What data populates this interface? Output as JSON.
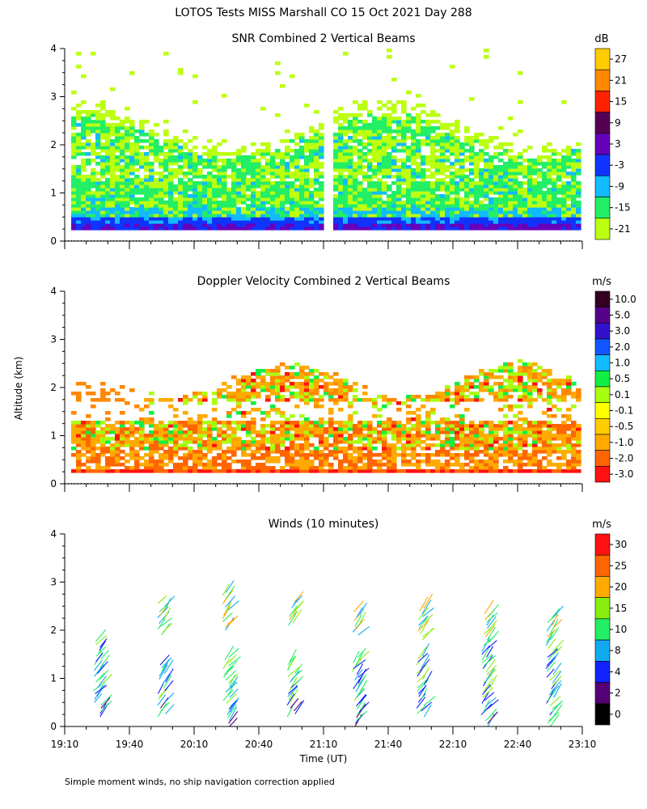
{
  "figure": {
    "title": "LOTOS Tests MISS Marshall CO  15 Oct 2021 Day 288",
    "y_axis_label": "Altitude (km)",
    "x_axis_label": "Time (UT)",
    "footnote": "Simple moment winds, no ship navigation correction applied"
  },
  "chart_data": [
    {
      "type": "heatmap",
      "title": "SNR Combined 2 Vertical Beams",
      "xlabel": "",
      "ylabel": "Altitude (km)",
      "xlim": [
        "19:10",
        "23:10"
      ],
      "ylim": [
        0,
        4
      ],
      "x_ticks": [
        "19:10",
        "19:40",
        "20:10",
        "20:40",
        "21:10",
        "21:40",
        "22:10",
        "22:40",
        "23:10"
      ],
      "y_ticks": [
        "0",
        "1",
        "2",
        "3",
        "4"
      ],
      "colorbar": {
        "unit": "dB",
        "levels": [
          "27",
          "21",
          "15",
          "9",
          "3",
          "-3",
          "-9",
          "-15",
          "-21"
        ],
        "colors": [
          "#ffcc00",
          "#ff8800",
          "#ff2200",
          "#550055",
          "#6600bb",
          "#1133ff",
          "#11bbff",
          "#22ee66",
          "#bbff11"
        ]
      },
      "layers": [
        {
          "altitude_km": [
            0.2,
            0.4
          ],
          "value": "3 to 9",
          "color": "#6600bb"
        },
        {
          "altitude_km": [
            0.4,
            0.7
          ],
          "value": "-3 to -9",
          "color": "#11bbff"
        },
        {
          "altitude_km": [
            0.7,
            1.3
          ],
          "value": "-15",
          "color": "#22ee66"
        },
        {
          "altitude_km": [
            1.3,
            2.2
          ],
          "value": "-21",
          "color": "#bbff11"
        },
        {
          "altitude_km": [
            2.0,
            2.5
          ],
          "value": "-15",
          "color": "#22ee66"
        },
        {
          "altitude_km": [
            2.5,
            4.0
          ],
          "value": "sparse -21",
          "color": "#bbff11"
        }
      ]
    },
    {
      "type": "heatmap",
      "title": "Doppler Velocity Combined 2 Vertical Beams",
      "xlabel": "",
      "ylabel": "Altitude (km)",
      "xlim": [
        "19:10",
        "23:10"
      ],
      "ylim": [
        0,
        4
      ],
      "x_ticks": [
        "19:10",
        "19:40",
        "20:10",
        "20:40",
        "21:10",
        "21:40",
        "22:10",
        "22:40",
        "23:10"
      ],
      "y_ticks": [
        "0",
        "1",
        "2",
        "3",
        "4"
      ],
      "colorbar": {
        "unit": "m/s",
        "levels": [
          "10.0",
          "5.0",
          "3.0",
          "2.0",
          "1.0",
          "0.5",
          "0.1",
          "-0.1",
          "-0.5",
          "-1.0",
          "-2.0",
          "-3.0"
        ],
        "colors": [
          "#330022",
          "#550088",
          "#3311cc",
          "#1155ff",
          "#11bbff",
          "#11ee44",
          "#aaff11",
          "#ffff00",
          "#ffcc00",
          "#ffaa00",
          "#ff6600",
          "#ff1111"
        ]
      },
      "layers": [
        {
          "altitude_km": [
            0.2,
            0.7
          ],
          "value": "-1.0 to -3.0",
          "color": "#ff6600"
        },
        {
          "altitude_km": [
            0.7,
            1.3
          ],
          "value": "-0.5 to -2.0",
          "color": "#ffaa00"
        },
        {
          "altitude_km": [
            1.7,
            2.5
          ],
          "value": "-0.5 to -2.0",
          "color": "#ff8800"
        },
        {
          "altitude_km": [
            1.7,
            2.3
          ],
          "value": "0.1 to 1.0",
          "color": "#aaff11"
        }
      ]
    },
    {
      "type": "scatter",
      "title": "Winds (10 minutes)",
      "xlabel": "Time (UT)",
      "ylabel": "Altitude (km)",
      "xlim": [
        "19:10",
        "23:10"
      ],
      "ylim": [
        0,
        4
      ],
      "x_ticks": [
        "19:10",
        "19:40",
        "20:10",
        "20:40",
        "21:10",
        "21:40",
        "22:10",
        "22:40",
        "23:10"
      ],
      "y_ticks": [
        "0",
        "1",
        "2",
        "3",
        "4"
      ],
      "colorbar": {
        "unit": "m/s",
        "levels": [
          "30",
          "25",
          "20",
          "15",
          "10",
          "8",
          "4",
          "2",
          "0"
        ],
        "colors": [
          "#ff1111",
          "#ff6600",
          "#ffaa00",
          "#88ee11",
          "#22ee66",
          "#11aaee",
          "#1122ff",
          "#550077",
          "#000000"
        ]
      },
      "series": [
        {
          "time": "19:25",
          "x_minutes": 15,
          "profiles": [
            {
              "alt_from": 0.2,
              "alt_to": 1.8,
              "speed": "2-8"
            }
          ]
        },
        {
          "time": "19:55",
          "x_minutes": 45,
          "profiles": [
            {
              "alt_from": 0.2,
              "alt_to": 1.3,
              "speed": "4-15"
            },
            {
              "alt_from": 1.9,
              "alt_to": 2.6,
              "speed": "8-15"
            }
          ]
        },
        {
          "time": "20:25",
          "x_minutes": 75,
          "profiles": [
            {
              "alt_from": 0.0,
              "alt_to": 1.5,
              "speed": "4-15"
            },
            {
              "alt_from": 2.0,
              "alt_to": 2.8,
              "speed": "10-20"
            }
          ]
        },
        {
          "time": "20:55",
          "x_minutes": 105,
          "profiles": [
            {
              "alt_from": 0.2,
              "alt_to": 1.4,
              "speed": "10-30"
            },
            {
              "alt_from": 2.1,
              "alt_to": 2.6,
              "speed": "4-15"
            }
          ]
        },
        {
          "time": "21:25",
          "x_minutes": 135,
          "profiles": [
            {
              "alt_from": 0.0,
              "alt_to": 1.5,
              "speed": "4-15"
            },
            {
              "alt_from": 1.9,
              "alt_to": 2.4,
              "speed": "4-15"
            }
          ]
        },
        {
          "time": "21:55",
          "x_minutes": 165,
          "profiles": [
            {
              "alt_from": 0.2,
              "alt_to": 1.5,
              "speed": "4-30"
            },
            {
              "alt_from": 1.8,
              "alt_to": 2.5,
              "speed": "4-15"
            }
          ]
        },
        {
          "time": "22:25",
          "x_minutes": 195,
          "profiles": [
            {
              "alt_from": 0.0,
              "alt_to": 2.4,
              "speed": "4-25"
            }
          ]
        },
        {
          "time": "22:55",
          "x_minutes": 225,
          "profiles": [
            {
              "alt_from": 0.0,
              "alt_to": 2.3,
              "speed": "4-25"
            }
          ]
        }
      ]
    }
  ]
}
